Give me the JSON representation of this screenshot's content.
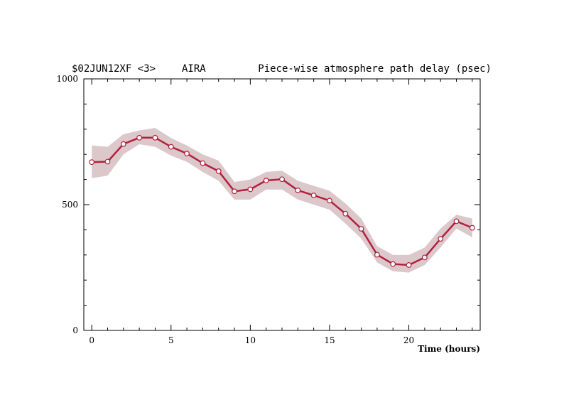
{
  "chart_data": {
    "type": "line",
    "title": {
      "source": "$02JUN12XF <3>",
      "antenna": "AIRA",
      "description": "Piece-wise atmosphere path delay (psec)"
    },
    "xlabel": "Time (hours)",
    "ylabel": "",
    "xlim": [
      -0.5,
      24.5
    ],
    "ylim": [
      0,
      1000
    ],
    "x_ticks": [
      0,
      5,
      10,
      15,
      20
    ],
    "y_ticks": [
      0,
      500,
      1000
    ],
    "grid": false,
    "colors": {
      "line": "#b0213f",
      "band": "#dcc8ca",
      "marker_fill": "#ffffff",
      "marker_edge": "#b0213f"
    },
    "series": [
      {
        "x": [
          0,
          1,
          2,
          3,
          4,
          5,
          6,
          7,
          8,
          9,
          10,
          11,
          12,
          13,
          14,
          15,
          16,
          17,
          18,
          19,
          20,
          21,
          22,
          23,
          24
        ],
        "values": [
          669,
          671,
          741,
          766,
          766,
          730,
          703,
          665,
          633,
          553,
          561,
          596,
          601,
          557,
          537,
          516,
          464,
          404,
          301,
          264,
          260,
          290,
          364,
          434,
          408
        ],
        "band_upper": [
          735,
          730,
          780,
          795,
          805,
          765,
          735,
          700,
          675,
          590,
          600,
          630,
          635,
          595,
          575,
          555,
          505,
          445,
          335,
          300,
          300,
          330,
          405,
          460,
          445
        ],
        "band_lower": [
          605,
          615,
          700,
          740,
          730,
          695,
          670,
          630,
          595,
          520,
          520,
          560,
          560,
          520,
          500,
          480,
          425,
          365,
          270,
          235,
          230,
          260,
          330,
          405,
          370
        ]
      }
    ]
  }
}
